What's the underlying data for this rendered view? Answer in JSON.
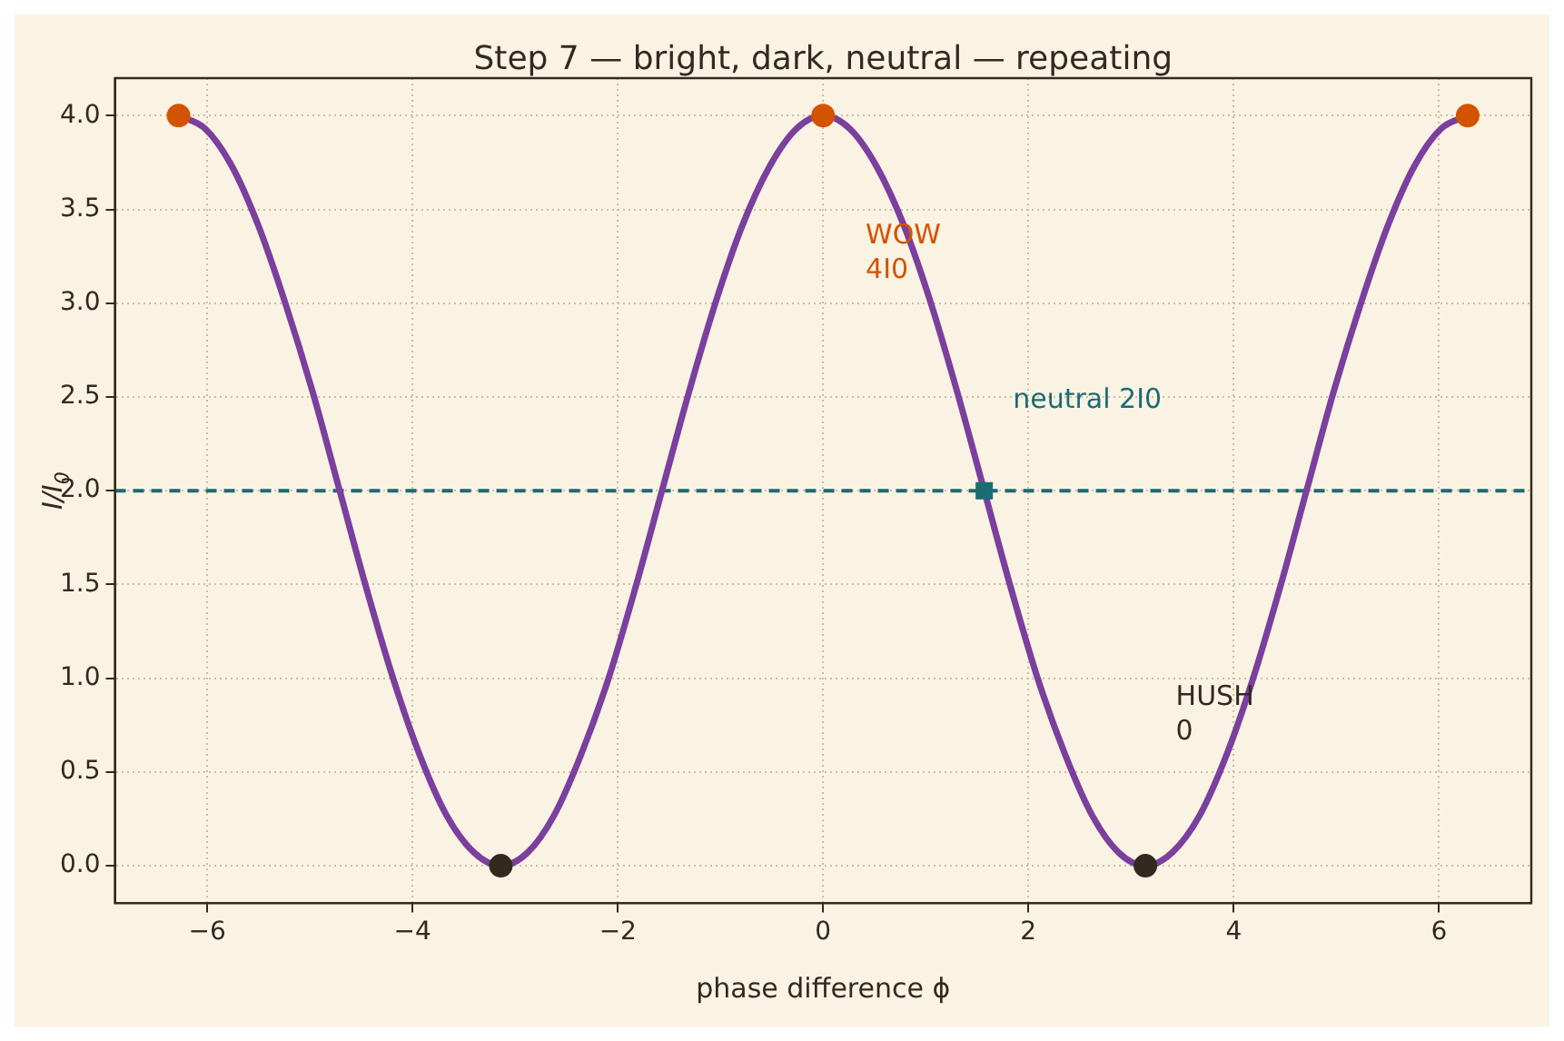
{
  "chart_data": {
    "type": "line",
    "title": "Step 7 — bright, dark, neutral — repeating",
    "xlabel": "phase difference ϕ",
    "ylabel": "I/I$_{0}$",
    "xlim": [
      -6.9,
      6.9
    ],
    "ylim": [
      -0.2,
      4.2
    ],
    "xticks": [
      {
        "value": -6,
        "label": "−6"
      },
      {
        "value": -4,
        "label": "−4"
      },
      {
        "value": -2,
        "label": "−2"
      },
      0,
      2,
      4,
      6
    ],
    "yticks": [
      {
        "value": 0,
        "label": "0.0"
      },
      0.5,
      {
        "value": 1,
        "label": "1.0"
      },
      1.5,
      {
        "value": 2,
        "label": "2.0"
      },
      2.5,
      {
        "value": 3,
        "label": "3.0"
      },
      3.5,
      {
        "value": 4,
        "label": "4.0"
      }
    ],
    "grid": true,
    "legend": false,
    "series": [
      {
        "color": "#7b3f9e",
        "line_style": "solid",
        "marker": "none",
        "x": [
          -6.28,
          -6.02,
          -5.76,
          -5.5,
          -5.24,
          -4.97,
          -4.71,
          -4.45,
          -4.19,
          -3.93,
          -3.67,
          -3.4,
          -3.14,
          -2.88,
          -2.62,
          -2.36,
          -2.09,
          -1.83,
          -1.57,
          -1.31,
          -1.05,
          -0.79,
          -0.52,
          -0.26,
          0,
          0.26,
          0.52,
          0.79,
          1.05,
          1.31,
          1.57,
          1.83,
          2.09,
          2.36,
          2.62,
          2.88,
          3.14,
          3.4,
          3.67,
          3.93,
          4.19,
          4.45,
          4.71,
          4.97,
          5.24,
          5.5,
          5.76,
          6.02,
          6.28
        ],
        "values": [
          4,
          3.93,
          3.73,
          3.41,
          3.0,
          2.52,
          2.0,
          1.48,
          1.0,
          0.59,
          0.27,
          0.07,
          0,
          0.07,
          0.27,
          0.59,
          1.0,
          1.48,
          2.0,
          2.52,
          3.0,
          3.41,
          3.73,
          3.93,
          4,
          3.93,
          3.73,
          3.41,
          3.0,
          2.52,
          2.0,
          1.48,
          1.0,
          0.59,
          0.27,
          0.07,
          0,
          0.07,
          0.27,
          0.59,
          1.0,
          1.48,
          2.0,
          2.52,
          3.0,
          3.41,
          3.73,
          3.93,
          4
        ]
      },
      {
        "type": "scatter",
        "color": "#d35400",
        "marker": "circle",
        "x": [
          -6.28,
          0,
          6.28
        ],
        "values": [
          4,
          4,
          4
        ]
      },
      {
        "type": "scatter",
        "color": "#33291f",
        "marker": "circle",
        "x": [
          -3.14,
          3.14
        ],
        "values": [
          0,
          0
        ]
      },
      {
        "type": "scatter",
        "color": "#1b6b73",
        "marker": "square",
        "x": [
          1.57
        ],
        "values": [
          2
        ]
      }
    ],
    "ref_lines": [
      {
        "axis": "y",
        "value": 2,
        "color": "#1b6b73",
        "line_style": "dashed"
      }
    ],
    "annotations": [
      "WOW\n4I0",
      "neutral 2I0",
      "HUSH\n0"
    ]
  }
}
